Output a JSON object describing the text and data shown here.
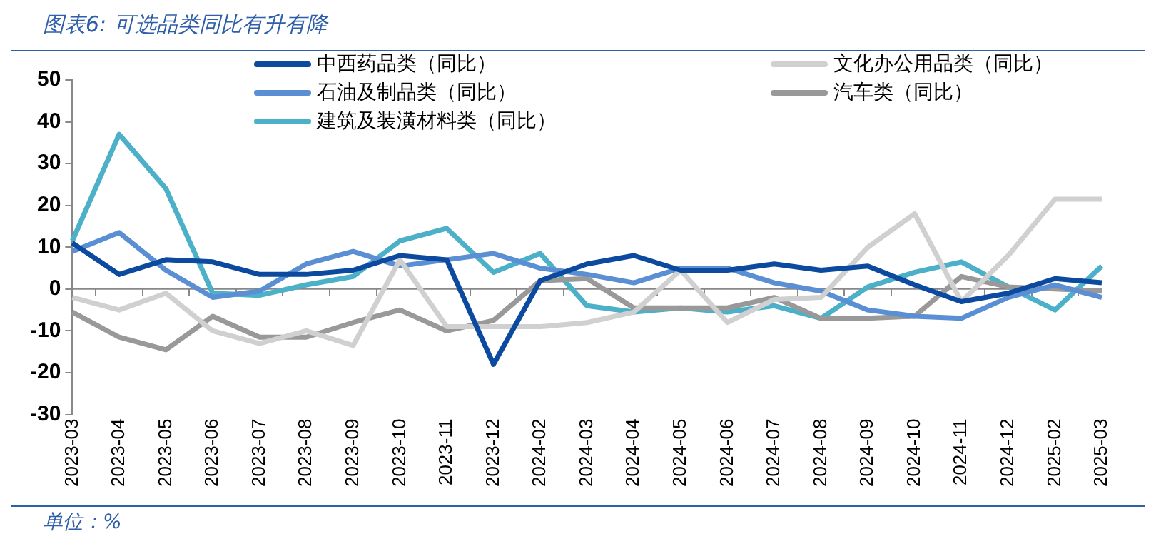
{
  "chart_data": {
    "type": "line",
    "title": "图表6:  可选品类同比有升有降",
    "annotations": [
      "单位：%"
    ],
    "categories": [
      "2023-03",
      "2023-04",
      "2023-05",
      "2023-06",
      "2023-07",
      "2023-08",
      "2023-09",
      "2023-10",
      "2023-11",
      "2023-12",
      "2024-02",
      "2024-03",
      "2024-04",
      "2024-05",
      "2024-06",
      "2024-07",
      "2024-08",
      "2024-09",
      "2024-10",
      "2024-11",
      "2024-12",
      "2025-02",
      "2025-03"
    ],
    "series": [
      {
        "name": "中西药品类（同比）",
        "color": "#0b4a9e",
        "values": [
          11,
          3.5,
          7,
          6.5,
          3.5,
          3.5,
          4.5,
          8,
          7,
          -18,
          2,
          6,
          8,
          4.5,
          4.5,
          6,
          4.5,
          5.5,
          1,
          -3,
          -1,
          2.5,
          1.5
        ]
      },
      {
        "name": "文化办公用品类（同比）",
        "color": "#d0d0d0",
        "values": [
          -2,
          -5,
          -1,
          -10,
          -13,
          -10,
          -13.5,
          7,
          -9,
          -9,
          -9,
          -8,
          -5.5,
          4.5,
          -8,
          -2.5,
          -2,
          10,
          18,
          -3,
          8,
          21.5,
          21.5
        ]
      },
      {
        "name": "石油及制品类（同比）",
        "color": "#5b8fd4",
        "values": [
          9,
          13.5,
          4.5,
          -2,
          -0.5,
          6,
          9,
          5.5,
          7,
          8.5,
          5,
          3.5,
          1.5,
          5,
          5,
          1.5,
          -0.5,
          -5,
          -6.5,
          -7,
          -2,
          1,
          -2
        ]
      },
      {
        "name": "汽车类（同比）",
        "color": "#999999",
        "values": [
          -5.5,
          -11.5,
          -14.5,
          -6.5,
          -11.5,
          -11.5,
          -8,
          -5,
          -10,
          -7.5,
          2,
          2.5,
          -4.5,
          -4.5,
          -4.5,
          -2,
          -7,
          -7,
          -6.5,
          3,
          0.5,
          0,
          -0.5
        ]
      },
      {
        "name": "建筑及装潢材料类（同比）",
        "color": "#4bb0c8",
        "values": [
          11.5,
          37,
          24,
          -1,
          -1.5,
          1,
          3,
          11.5,
          14.5,
          4,
          8.5,
          -4,
          -5.5,
          -4.5,
          -5.5,
          -4,
          -7,
          0.5,
          4,
          6.5,
          0.5,
          -5,
          5.5
        ]
      }
    ],
    "ylim": [
      -30,
      50
    ],
    "yticks": [
      -30,
      -20,
      -10,
      0,
      10,
      20,
      30,
      40,
      50
    ],
    "ref_lines": [
      {
        "axis": "y",
        "value": 0,
        "color": "#888888"
      }
    ],
    "grid": false,
    "legend": "top",
    "marker": "none",
    "line_style": "solid"
  }
}
